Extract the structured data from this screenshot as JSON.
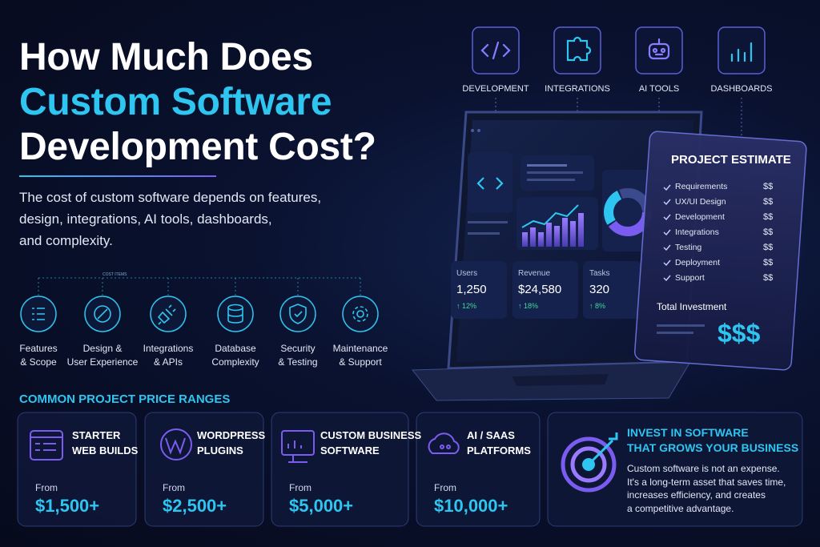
{
  "header": {
    "title_lines": [
      "How Much Does",
      "Custom Software",
      "Development Cost?"
    ],
    "subtitle_lines": [
      "The cost of custom software depends on features,",
      "design, integrations, AI tools, dashboards,",
      "and complexity."
    ]
  },
  "top_categories": [
    "DEVELOPMENT",
    "INTEGRATIONS",
    "AI TOOLS",
    "DASHBOARDS"
  ],
  "cost_items": {
    "label": "COST ITEMS",
    "items": [
      {
        "lines": [
          "Features",
          "& Scope"
        ]
      },
      {
        "lines": [
          "Design &",
          "User Experience"
        ]
      },
      {
        "lines": [
          "Integrations",
          "& APIs"
        ]
      },
      {
        "lines": [
          "Database",
          "Complexity"
        ]
      },
      {
        "lines": [
          "Security",
          "& Testing"
        ]
      },
      {
        "lines": [
          "Maintenance",
          "& Support"
        ]
      }
    ]
  },
  "dashboard": {
    "stats": [
      {
        "label": "Users",
        "value": "1,250",
        "change": "↑ 12%"
      },
      {
        "label": "Revenue",
        "value": "$24,580",
        "change": "↑ 18%"
      },
      {
        "label": "Tasks",
        "value": "320",
        "change": "↑ 8%"
      }
    ]
  },
  "estimate": {
    "title": "PROJECT ESTIMATE",
    "items": [
      {
        "label": "Requirements",
        "cost": "$$"
      },
      {
        "label": "UX/UI Design",
        "cost": "$$"
      },
      {
        "label": "Development",
        "cost": "$$"
      },
      {
        "label": "Integrations",
        "cost": "$$"
      },
      {
        "label": "Testing",
        "cost": "$$"
      },
      {
        "label": "Deployment",
        "cost": "$$"
      },
      {
        "label": "Support",
        "cost": "$$"
      }
    ],
    "total_label": "Total Investment",
    "total": "$$$"
  },
  "price_ranges": {
    "title": "COMMON PROJECT PRICE RANGES",
    "cards": [
      {
        "name_lines": [
          "STARTER",
          "WEB BUILDS"
        ],
        "from": "From",
        "price": "$1,500+"
      },
      {
        "name_lines": [
          "WORDPRESS",
          "PLUGINS"
        ],
        "from": "From",
        "price": "$2,500+"
      },
      {
        "name_lines": [
          "CUSTOM BUSINESS",
          "SOFTWARE"
        ],
        "from": "From",
        "price": "$5,000+"
      },
      {
        "name_lines": [
          "AI / SAAS",
          "PLATFORMS"
        ],
        "from": "From",
        "price": "$10,000+"
      }
    ]
  },
  "invest": {
    "title_lines": [
      "INVEST IN SOFTWARE",
      "THAT GROWS YOUR BUSINESS"
    ],
    "body_lines": [
      "Custom software is not an expense.",
      "It's a long-term asset that saves time,",
      "increases efficiency, and creates",
      "a competitive advantage."
    ]
  }
}
